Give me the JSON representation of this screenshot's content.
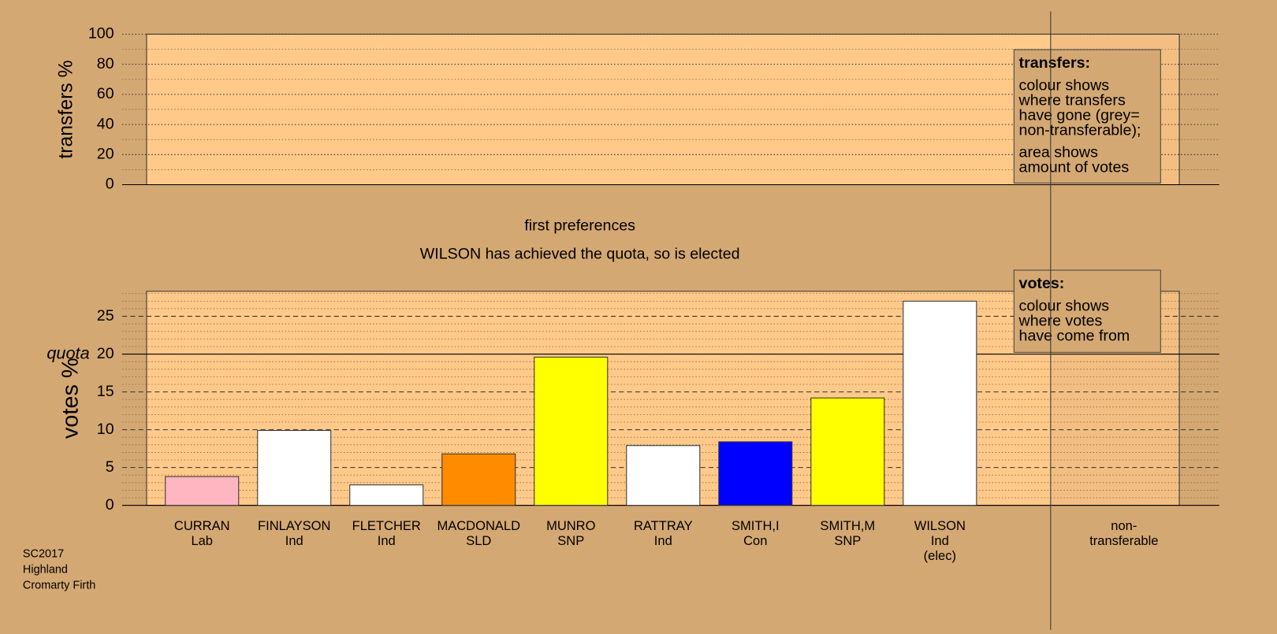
{
  "chart_data": [
    {
      "type": "bar",
      "ylabel": "transfers %",
      "ylim": [
        0,
        100
      ],
      "yticks": [
        0,
        20,
        40,
        60,
        80,
        100
      ],
      "minor_yticks": [
        10,
        30,
        50,
        70,
        90
      ],
      "grid": true,
      "legend": {
        "title": "transfers:",
        "paragraphs": [
          [
            "colour shows",
            "where transfers",
            "have gone (grey=",
            "non-transferable);"
          ],
          [
            "area shows",
            "amount of votes"
          ]
        ]
      }
    },
    {
      "type": "bar",
      "title": "first preferences",
      "subtitle": "WILSON has achieved the quota, so is elected",
      "ylabel": "votes %",
      "categories": [
        [
          "CURRAN",
          "Lab"
        ],
        [
          "FINLAYSON",
          "Ind"
        ],
        [
          "FLETCHER",
          "Ind"
        ],
        [
          "MACDONALD",
          "SLD"
        ],
        [
          "MUNRO",
          "SNP"
        ],
        [
          "RATTRAY",
          "Ind"
        ],
        [
          "SMITH,I",
          "Con"
        ],
        [
          "SMITH,M",
          "SNP"
        ],
        [
          "WILSON",
          "Ind",
          "(elec)"
        ],
        [
          "non-",
          "transferable"
        ]
      ],
      "values": [
        3.8,
        9.9,
        2.7,
        6.8,
        19.6,
        7.9,
        8.4,
        14.2,
        27.0,
        null
      ],
      "colors": [
        "#ffb6c1",
        "#ffffff",
        "#ffffff",
        "#ff8c00",
        "#ffff00",
        "#ffffff",
        "#0000ff",
        "#ffff00",
        "#ffffff",
        null
      ],
      "ylim": [
        0,
        28.3
      ],
      "yticks": [
        0,
        5,
        10,
        15,
        20,
        25
      ],
      "minor_yticks": [
        1,
        2,
        3,
        4,
        6,
        7,
        8,
        9,
        11,
        12,
        13,
        14,
        16,
        17,
        18,
        19,
        21,
        22,
        23,
        24,
        26,
        27,
        28
      ],
      "grid": true,
      "quota": {
        "value": 20,
        "label": "quota"
      },
      "legend": {
        "title": "votes:",
        "paragraphs": [
          [
            "colour shows",
            "where votes",
            "have come from"
          ]
        ]
      }
    }
  ],
  "footer": [
    "SC2017",
    "Highland",
    "Cromarty Firth"
  ]
}
